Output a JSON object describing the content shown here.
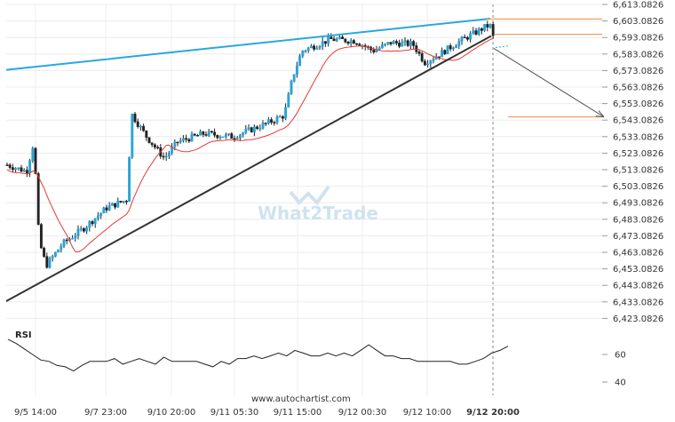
{
  "chart_data": {
    "type": "candlestick",
    "price_axis": {
      "ticks": [
        "6,613.0826",
        "6,603.0826",
        "6,593.0826",
        "6,583.0826",
        "6,573.0826",
        "6,563.0826",
        "6,553.0826",
        "6,543.0826",
        "6,533.0826",
        "6,523.0826",
        "6,513.0826",
        "6,503.0826",
        "6,493.0826",
        "6,483.0826",
        "6,473.0826",
        "6,463.0826",
        "6,453.0826",
        "6,443.0826",
        "6,433.0826",
        "6,423.0826"
      ],
      "min": 6423.0826,
      "max": 6613.0826
    },
    "time_axis": {
      "ticks": [
        "9/5 14:00",
        "9/7 23:00",
        "9/10 20:00",
        "9/11 05:30",
        "9/11 15:00",
        "9/12 00:30",
        "9/12 10:00",
        "9/12 20:00"
      ]
    },
    "rsi": {
      "label": "RSI",
      "ticks": [
        "60",
        "40"
      ],
      "values": [
        71,
        68,
        64,
        60,
        56,
        55,
        52,
        51,
        48,
        52,
        55,
        55,
        55,
        57,
        53,
        55,
        57,
        55,
        53,
        58,
        55,
        55,
        55,
        55,
        53,
        51,
        55,
        53,
        57,
        57,
        59,
        57,
        59,
        61,
        59,
        63,
        61,
        59,
        59,
        61,
        59,
        61,
        59,
        63,
        67,
        63,
        59,
        59,
        57,
        57,
        55,
        55,
        55,
        55,
        55,
        53,
        53,
        55,
        57,
        61,
        63,
        66
      ]
    },
    "watermark": "What2Trade",
    "footer": "www.autochartist.com",
    "pattern": {
      "resistance": [
        6573.5,
        6604.5
      ],
      "support": [
        6433.5,
        6594.0
      ],
      "projection": [
        6586.5,
        6545.0
      ],
      "target_level": 6545.0,
      "upper_level": 6604.3,
      "mid_level": 6595.0
    }
  }
}
